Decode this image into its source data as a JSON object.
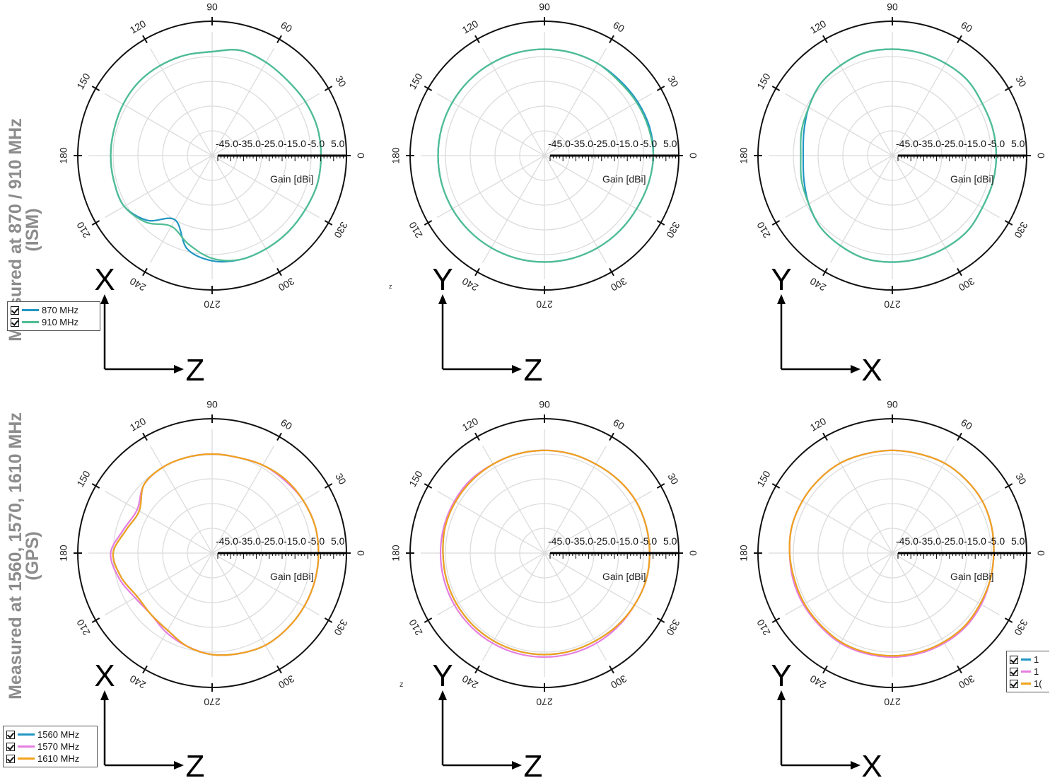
{
  "row_labels": {
    "ism": "Measured at 870 / 910 MHz\n(ISM)",
    "gps": "Measured at 1560, 1570, 1610 MHz\n(GPS)"
  },
  "legends": {
    "ism": [
      {
        "label": "870 MHz",
        "color": "#2196c4"
      },
      {
        "label": "910 MHz",
        "color": "#4fbd94"
      }
    ],
    "gps": [
      {
        "label": "1560 MHz",
        "color": "#2196c4"
      },
      {
        "label": "1570 MHz",
        "color": "#e57ee0"
      },
      {
        "label": "1610 MHz",
        "color": "#f2a21d"
      }
    ],
    "gps_partial": [
      {
        "label": "1",
        "color": "#2196c4"
      },
      {
        "label": "1",
        "color": "#e57ee0"
      },
      {
        "label": "1(",
        "color": "#f2a21d"
      }
    ]
  },
  "stray_marks": {
    "z1": "z",
    "z2": "z"
  },
  "chart_data": [
    {
      "type": "polar",
      "radial_label": "Gain [dBi]",
      "r_ticks": [
        "-45.0",
        "-35.0",
        "-25.0",
        "-15.0",
        "-5.0",
        "5.0"
      ],
      "rlim": [
        -45,
        5
      ],
      "angle_ticks": [
        "0",
        "30",
        "60",
        "90",
        "120",
        "150",
        "180",
        "210",
        "240",
        "270",
        "300",
        "330"
      ],
      "axes": {
        "vertical": "X",
        "horizontal": "Z"
      },
      "angles": [
        0,
        15,
        30,
        45,
        60,
        75,
        90,
        105,
        120,
        135,
        150,
        165,
        180,
        195,
        210,
        225,
        240,
        255,
        270,
        285,
        300,
        315,
        330,
        345
      ],
      "series": [
        {
          "name": "870 MHz",
          "values": [
            -1,
            -1,
            -1.5,
            -2,
            -1.5,
            -1,
            -3,
            -3,
            -3,
            -3,
            -3.5,
            -4,
            -4,
            -4,
            -4,
            -8,
            -15,
            -6,
            -2.5,
            -1.5,
            -1.5,
            -1.5,
            -1.5,
            -1
          ]
        },
        {
          "name": "910 MHz",
          "values": [
            -1,
            -1,
            -1.5,
            -2,
            -1.5,
            -1,
            -3,
            -3,
            -3,
            -3,
            -3.5,
            -4,
            -4,
            -4,
            -4,
            -7,
            -12,
            -8,
            -3.5,
            -1.5,
            -1.5,
            -1.5,
            -1.5,
            -1
          ]
        }
      ]
    },
    {
      "type": "polar",
      "radial_label": "Gain [dBi]",
      "r_ticks": [
        "-45.0",
        "-35.0",
        "-25.0",
        "-15.0",
        "-5.0",
        "5.0"
      ],
      "rlim": [
        -45,
        5
      ],
      "angle_ticks": [
        "0",
        "30",
        "60",
        "90",
        "120",
        "150",
        "180",
        "210",
        "240",
        "270",
        "300",
        "330"
      ],
      "axes": {
        "vertical": "Y",
        "horizontal": "Z"
      },
      "angles": [
        0,
        15,
        30,
        45,
        60,
        75,
        90,
        105,
        120,
        135,
        150,
        165,
        180,
        195,
        210,
        225,
        240,
        255,
        270,
        285,
        300,
        315,
        330,
        345
      ],
      "series": [
        {
          "name": "870 MHz",
          "values": [
            -1,
            -1,
            -1.5,
            -2,
            -2,
            -2,
            -2,
            -2,
            -2,
            -2,
            -2,
            -2,
            -2,
            -2,
            -2,
            -2,
            -2,
            -2,
            -2,
            -2,
            -2,
            -2,
            -2,
            -1.5
          ]
        },
        {
          "name": "910 MHz",
          "values": [
            -1,
            -1.5,
            -2,
            -2.5,
            -2,
            -2,
            -2,
            -2,
            -2,
            -2,
            -2,
            -2,
            -2,
            -2,
            -2,
            -2,
            -2,
            -2,
            -2,
            -2,
            -2,
            -2,
            -2,
            -1.5
          ]
        }
      ]
    },
    {
      "type": "polar",
      "radial_label": "Gain [dBi]",
      "r_ticks": [
        "-45.0",
        "-35.0",
        "-25.0",
        "-15.0",
        "-5.0",
        "5.0"
      ],
      "rlim": [
        -45,
        5
      ],
      "angle_ticks": [
        "0",
        "30",
        "60",
        "90",
        "120",
        "150",
        "180",
        "210",
        "240",
        "270",
        "300",
        "330"
      ],
      "axes": {
        "vertical": "Y",
        "horizontal": "X"
      },
      "angles": [
        0,
        15,
        30,
        45,
        60,
        75,
        90,
        105,
        120,
        135,
        150,
        165,
        180,
        195,
        210,
        225,
        240,
        255,
        270,
        285,
        300,
        315,
        330,
        345
      ],
      "series": [
        {
          "name": "870 MHz",
          "values": [
            -3,
            -3,
            -3,
            -2,
            -2,
            -2,
            -2,
            -2,
            -3,
            -4,
            -6,
            -8,
            -9,
            -8,
            -6,
            -4,
            -3,
            -2,
            -2,
            -2,
            -2,
            -2,
            -3,
            -3
          ]
        },
        {
          "name": "910 MHz",
          "values": [
            -3,
            -3,
            -3,
            -2,
            -2,
            -2,
            -2,
            -2,
            -3,
            -4,
            -6,
            -7,
            -8,
            -7,
            -6,
            -4,
            -3,
            -2,
            -2,
            -2,
            -2,
            -2,
            -3,
            -3
          ]
        }
      ]
    },
    {
      "type": "polar",
      "radial_label": "Gain [dBi]",
      "r_ticks": [
        "-45.0",
        "-35.0",
        "-25.0",
        "-15.0",
        "-5.0",
        "5.0"
      ],
      "rlim": [
        -45,
        5
      ],
      "angle_ticks": [
        "0",
        "30",
        "60",
        "90",
        "120",
        "150",
        "180",
        "210",
        "240",
        "270",
        "300",
        "330"
      ],
      "axes": {
        "vertical": "X",
        "horizontal": "Z"
      },
      "angles": [
        0,
        15,
        30,
        45,
        60,
        75,
        90,
        105,
        120,
        135,
        150,
        165,
        180,
        195,
        210,
        225,
        240,
        255,
        270,
        285,
        300,
        315,
        330,
        345
      ],
      "series": [
        {
          "name": "1560 MHz",
          "values": [
            -2,
            -2,
            -2.5,
            -3,
            -4,
            -5,
            -5,
            -5,
            -5,
            -6,
            -11,
            -9,
            -5,
            -7,
            -10,
            -10,
            -9,
            -6,
            -4,
            -3,
            -2,
            -2,
            -2,
            -2
          ]
        },
        {
          "name": "1570 MHz",
          "values": [
            -2,
            -2,
            -2.5,
            -3.5,
            -4,
            -5,
            -5,
            -5,
            -5,
            -6,
            -10,
            -8,
            -4,
            -6,
            -9,
            -10,
            -8,
            -6,
            -4,
            -3,
            -2,
            -2,
            -2,
            -2
          ]
        },
        {
          "name": "1610 MHz",
          "values": [
            -2,
            -2,
            -2.5,
            -3,
            -4,
            -5,
            -5,
            -5,
            -5,
            -6,
            -11,
            -9,
            -5,
            -7,
            -10,
            -10,
            -9,
            -6,
            -4,
            -3,
            -2,
            -2,
            -2,
            -2
          ]
        }
      ]
    },
    {
      "type": "polar",
      "radial_label": "Gain [dBi]",
      "r_ticks": [
        "-45.0",
        "-35.0",
        "-25.0",
        "-15.0",
        "-5.0",
        "5.0"
      ],
      "rlim": [
        -45,
        5
      ],
      "angle_ticks": [
        "0",
        "30",
        "60",
        "90",
        "120",
        "150",
        "180",
        "210",
        "240",
        "270",
        "300",
        "330"
      ],
      "axes": {
        "vertical": "Y",
        "horizontal": "Z"
      },
      "angles": [
        0,
        15,
        30,
        45,
        60,
        75,
        90,
        105,
        120,
        135,
        150,
        165,
        180,
        195,
        210,
        225,
        240,
        255,
        270,
        285,
        300,
        315,
        330,
        345
      ],
      "series": [
        {
          "name": "1560 MHz",
          "values": [
            -2.5,
            -2.5,
            -2.5,
            -3,
            -3.5,
            -3.5,
            -3.5,
            -3.5,
            -3.5,
            -3.5,
            -3.5,
            -3.5,
            -4,
            -4,
            -4,
            -4,
            -4,
            -4,
            -4,
            -4,
            -4,
            -3.5,
            -3,
            -2.5
          ]
        },
        {
          "name": "1570 MHz",
          "values": [
            -2.5,
            -2.5,
            -2.5,
            -3,
            -3.5,
            -3.5,
            -3.5,
            -3.5,
            -3.5,
            -3,
            -3,
            -3,
            -3,
            -3,
            -3,
            -3,
            -3,
            -3,
            -3,
            -3,
            -3,
            -3,
            -3,
            -2.5
          ]
        },
        {
          "name": "1610 MHz",
          "values": [
            -2.5,
            -2.5,
            -2.5,
            -3,
            -3.5,
            -3.5,
            -3.5,
            -3.5,
            -3.5,
            -3.5,
            -3.5,
            -3.5,
            -4,
            -4,
            -4,
            -4,
            -4,
            -4,
            -4,
            -4,
            -4,
            -3.5,
            -3,
            -2.5
          ]
        }
      ]
    },
    {
      "type": "polar",
      "radial_label": "Gain [dBi]",
      "r_ticks": [
        "-45.0",
        "-35.0",
        "-25.0",
        "-15.0",
        "-5.0",
        "5.0"
      ],
      "rlim": [
        -45,
        5
      ],
      "angle_ticks": [
        "0",
        "30",
        "60",
        "90",
        "120",
        "150",
        "180",
        "210",
        "240",
        "270",
        "300",
        "330"
      ],
      "axes": {
        "vertical": "Y",
        "horizontal": "X"
      },
      "angles": [
        0,
        15,
        30,
        45,
        60,
        75,
        90,
        105,
        120,
        135,
        150,
        165,
        180,
        195,
        210,
        225,
        240,
        255,
        270,
        285,
        300,
        315,
        330,
        345
      ],
      "series": [
        {
          "name": "1560 MHz",
          "values": [
            -4,
            -3.5,
            -3,
            -3,
            -3,
            -3.5,
            -3.5,
            -3.5,
            -3,
            -3,
            -3,
            -3,
            -3.5,
            -4,
            -4,
            -4,
            -3.5,
            -3.5,
            -3.5,
            -3.5,
            -3.5,
            -3.5,
            -4,
            -4
          ]
        },
        {
          "name": "1570 MHz",
          "values": [
            -4,
            -3.5,
            -3,
            -3,
            -3,
            -3.5,
            -3.5,
            -3.5,
            -3,
            -3,
            -3,
            -3,
            -3.5,
            -3.5,
            -3.5,
            -3.5,
            -3,
            -3,
            -3,
            -3,
            -3,
            -3,
            -3.5,
            -4
          ]
        },
        {
          "name": "1610 MHz",
          "values": [
            -4,
            -3.5,
            -3,
            -3,
            -3,
            -3.5,
            -3.5,
            -3.5,
            -3,
            -3,
            -3,
            -3,
            -3.5,
            -4,
            -4,
            -4,
            -3.5,
            -3.5,
            -3.5,
            -3.5,
            -3.5,
            -3.5,
            -4,
            -4
          ]
        }
      ]
    }
  ]
}
